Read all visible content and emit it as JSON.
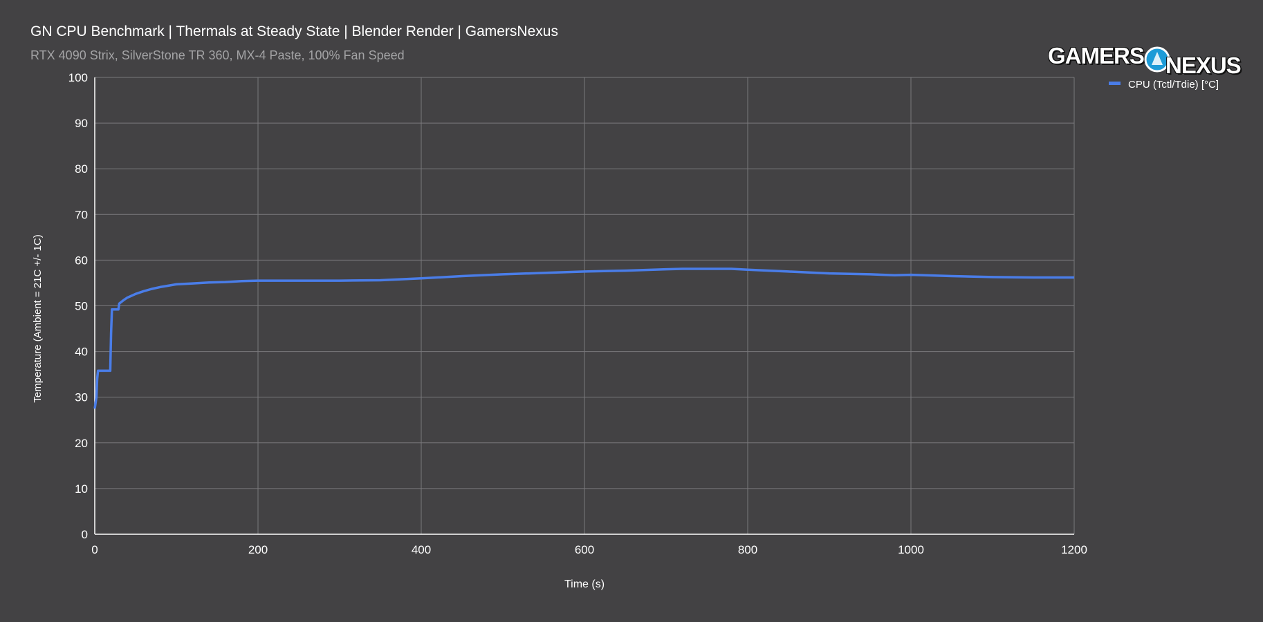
{
  "header": {
    "title": "GN CPU Benchmark | Thermals at Steady State | Blender Render | GamersNexus",
    "subtitle": "RTX 4090 Strix, SilverStone TR 360, MX-4 Paste, 100% Fan Speed"
  },
  "logo": {
    "left_text": "GAMERS",
    "right_text": "NEXUS"
  },
  "colors": {
    "background": "#434244",
    "grid": "#7a797c",
    "axis_text": "#ffffff",
    "series": "#4a7de8"
  },
  "chart_data": {
    "type": "line",
    "title": "GN CPU Benchmark | Thermals at Steady State | Blender Render | GamersNexus",
    "subtitle": "RTX 4090 Strix, SilverStone TR 360, MX-4 Paste, 100% Fan Speed",
    "xlabel": "Time (s)",
    "ylabel": "Temperature (Ambient = 21C +/- 1C)",
    "xlim": [
      0,
      1200
    ],
    "ylim": [
      0,
      100
    ],
    "xticks": [
      "0",
      "200",
      "400",
      "600",
      "800",
      "1000",
      "1200"
    ],
    "yticks": [
      "0",
      "10",
      "20",
      "30",
      "40",
      "50",
      "60",
      "70",
      "80",
      "90",
      "100"
    ],
    "grid": true,
    "legend_position": "top-right",
    "series": [
      {
        "name": "CPU (Tctl/Tdie) [°C]",
        "color": "#4a7de8",
        "x": [
          0,
          2,
          3,
          4,
          5,
          19,
          20,
          21,
          29,
          30,
          35,
          40,
          45,
          50,
          60,
          70,
          80,
          90,
          100,
          120,
          140,
          160,
          180,
          200,
          250,
          300,
          350,
          400,
          450,
          500,
          550,
          600,
          650,
          700,
          720,
          750,
          780,
          800,
          850,
          900,
          950,
          980,
          1000,
          1050,
          1100,
          1150,
          1200
        ],
        "y": [
          27.5,
          30,
          34,
          35.8,
          35.8,
          35.8,
          44,
          49.2,
          49.2,
          50.5,
          51.2,
          51.8,
          52.2,
          52.6,
          53.2,
          53.7,
          54.1,
          54.4,
          54.7,
          54.9,
          55.1,
          55.2,
          55.4,
          55.5,
          55.5,
          55.5,
          55.6,
          56.0,
          56.5,
          56.9,
          57.2,
          57.5,
          57.7,
          58.0,
          58.1,
          58.1,
          58.1,
          57.9,
          57.5,
          57.1,
          56.9,
          56.7,
          56.8,
          56.5,
          56.3,
          56.2,
          56.2
        ]
      }
    ]
  }
}
